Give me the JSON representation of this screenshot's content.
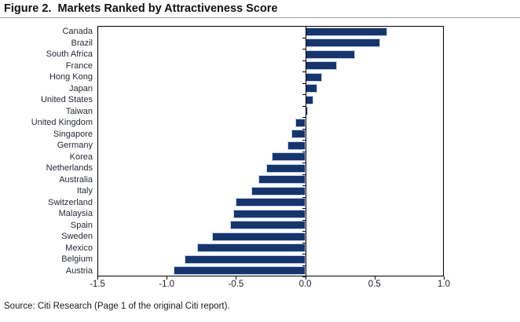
{
  "title": "Figure 2.  Markets Ranked by Attractiveness Score",
  "source": "Source: Citi Research (Page 1 of the original Citi report).",
  "colors": {
    "bar_fill": "#16356d",
    "bar_edge": "#c2cfe6",
    "axis": "#000000",
    "divider": "#a3a3a3"
  },
  "chart_data": {
    "type": "bar",
    "orientation": "horizontal",
    "title": "Figure 2.  Markets Ranked by Attractiveness Score",
    "xlabel": "",
    "ylabel": "",
    "grid": false,
    "xlim": [
      -1.5,
      1.0
    ],
    "x_ticks": [
      "-1.5",
      "-1.0",
      "-0.5",
      "0.0",
      "0.5",
      "1.0"
    ],
    "x_tick_values": [
      -1.5,
      -1.0,
      -0.5,
      0.0,
      0.5,
      1.0
    ],
    "categories": [
      "Canada",
      "Brazil",
      "South Africa",
      "France",
      "Hong Kong",
      "Japan",
      "United States",
      "Taiwan",
      "United Kingdom",
      "Singapore",
      "Germany",
      "Korea",
      "Netherlands",
      "Australia",
      "Italy",
      "Switzerland",
      "Malaysia",
      "Spain",
      "Sweden",
      "Mexico",
      "Belgium",
      "Austria"
    ],
    "values": [
      0.59,
      0.54,
      0.36,
      0.23,
      0.12,
      0.09,
      0.06,
      0.02,
      -0.07,
      -0.1,
      -0.13,
      -0.24,
      -0.28,
      -0.34,
      -0.39,
      -0.5,
      -0.52,
      -0.54,
      -0.67,
      -0.78,
      -0.87,
      -0.95
    ]
  }
}
